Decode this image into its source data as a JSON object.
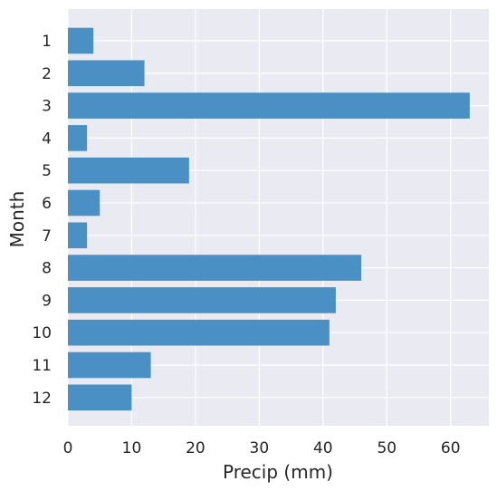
{
  "chart_data": {
    "type": "bar",
    "orientation": "horizontal",
    "categories": [
      "1",
      "2",
      "3",
      "4",
      "5",
      "6",
      "7",
      "8",
      "9",
      "10",
      "11",
      "12"
    ],
    "values": [
      4,
      12,
      63,
      3,
      19,
      5,
      3,
      46,
      42,
      41,
      13,
      10
    ],
    "xlabel": "Precip (mm)",
    "ylabel": "Month",
    "xlim": [
      0,
      66
    ],
    "xticks": [
      "0",
      "10",
      "20",
      "30",
      "40",
      "50",
      "60"
    ],
    "grid": true,
    "bar_color": "#4a90c4",
    "background_color": "#eaeaf2"
  }
}
